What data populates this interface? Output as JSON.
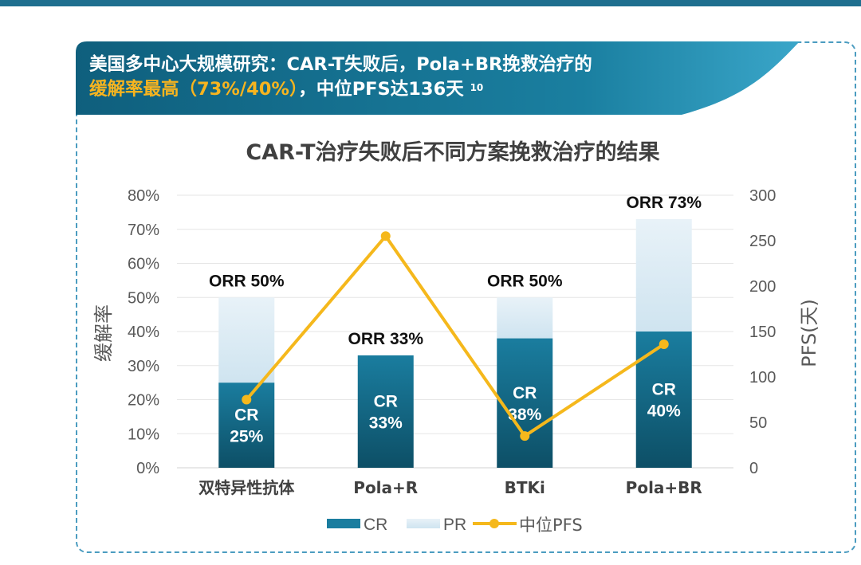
{
  "headline": {
    "line1": "美国多中心大规模研究：CAR-T失败后，Pola+BR挽救治疗的",
    "line2_highlight": "缓解率最高（73%/40%）",
    "line2_rest": "，中位PFS达136天",
    "superscript": "10"
  },
  "colors": {
    "cr": "#1a7d9f",
    "pr": "#cfe4f0",
    "pfs": "#f5b81c",
    "banner": "#156f8d"
  },
  "chart_data": {
    "type": "bar",
    "title": "CAR-T治疗失败后不同方案挽救治疗的结果",
    "categories": [
      "双特异性抗体",
      "Pola+R",
      "BTKi",
      "Pola+BR"
    ],
    "series": [
      {
        "name": "CR",
        "values": [
          25,
          33,
          38,
          40
        ],
        "labels": [
          "CR\n25%",
          "CR\n33%",
          "CR\n38%",
          "CR\n40%"
        ]
      },
      {
        "name": "PR",
        "values": [
          25,
          0,
          12,
          33
        ]
      }
    ],
    "orr_labels": [
      "ORR 50%",
      "ORR 33%",
      "ORR 50%",
      "ORR 73%"
    ],
    "line_series": {
      "name": "中位PFS",
      "values": [
        75,
        255,
        35,
        136
      ],
      "axis": "right"
    },
    "ylabel": "缓解率",
    "ylim": [
      0,
      80
    ],
    "yticks": [
      "0%",
      "10%",
      "20%",
      "30%",
      "40%",
      "50%",
      "60%",
      "70%",
      "80%"
    ],
    "y2label": "PFS(天)",
    "y2lim": [
      0,
      300
    ],
    "y2ticks": [
      "0",
      "50",
      "100",
      "150",
      "200",
      "250",
      "300"
    ],
    "legend": [
      "CR",
      "PR",
      "中位PFS"
    ],
    "grid": true
  }
}
